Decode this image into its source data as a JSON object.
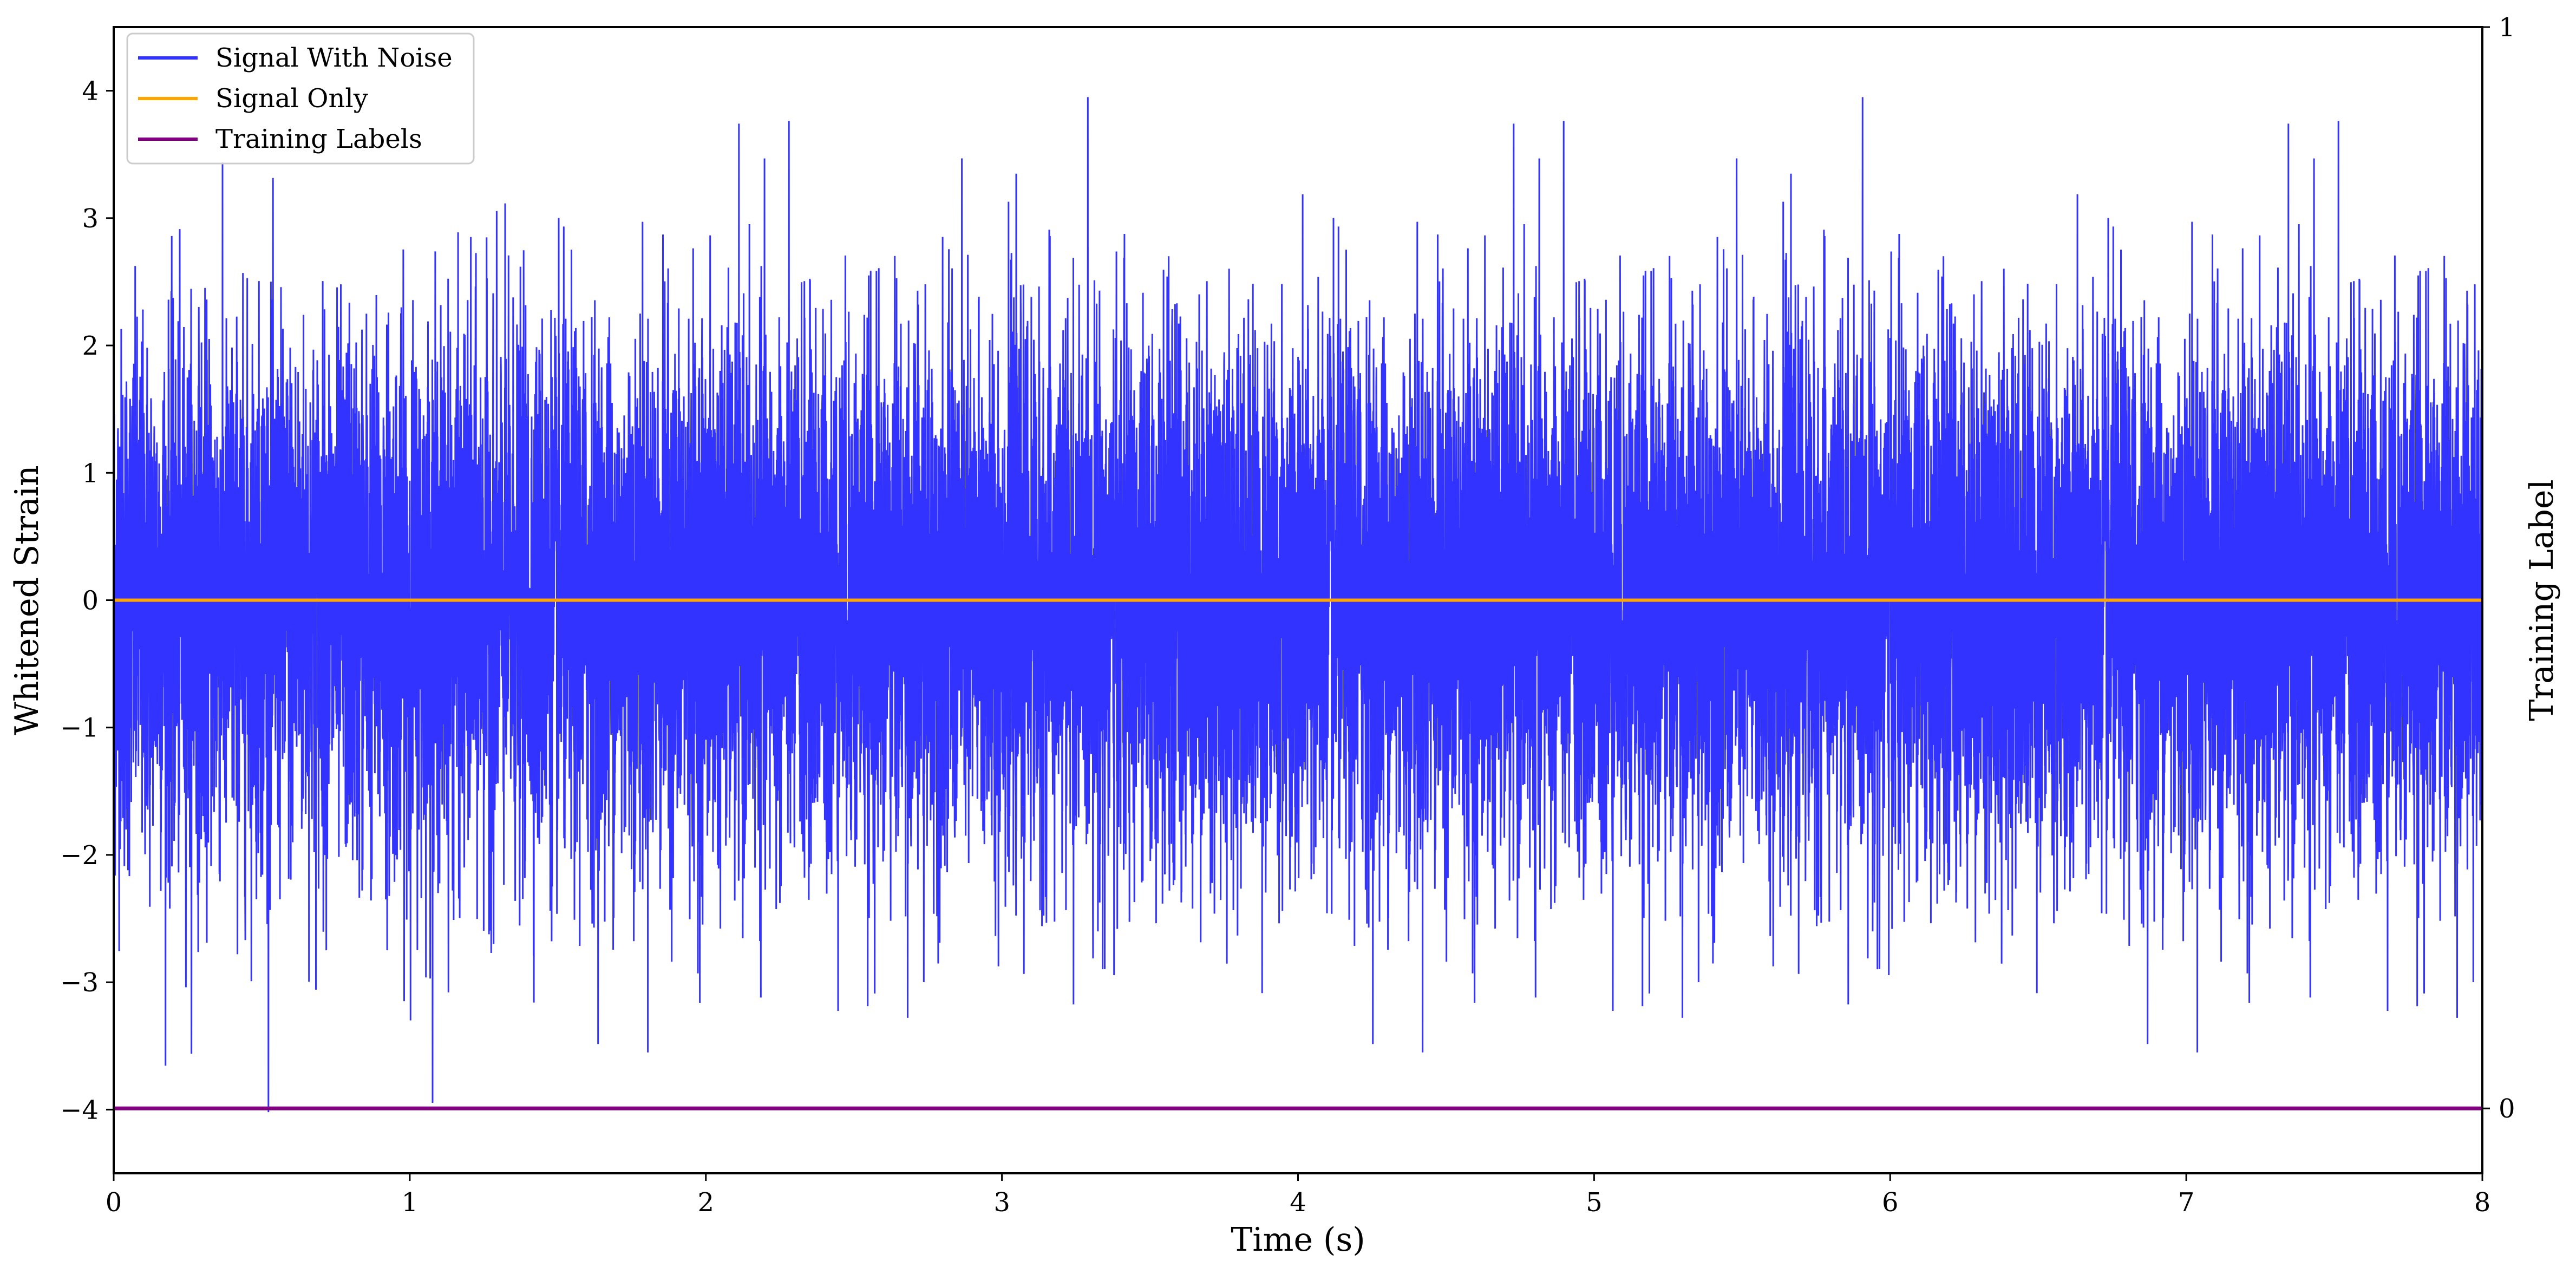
{
  "chart_data": {
    "type": "line",
    "title": "",
    "xlabel": "Time (s)",
    "ylabel": "Whitened Strain",
    "y2label": "Training Label",
    "xlim": [
      0,
      8
    ],
    "ylim": [
      -4.5,
      4.5
    ],
    "y2lim": [
      -0.06,
      1
    ],
    "xticks": [
      "0",
      "1",
      "2",
      "3",
      "4",
      "5",
      "6",
      "7",
      "8"
    ],
    "yticks": [
      "4",
      "3",
      "2",
      "1",
      "0",
      "−1",
      "−2",
      "−3",
      "−4"
    ],
    "y2ticks": [
      "1",
      "0"
    ],
    "grid": false,
    "legend_position": "top-left",
    "series": [
      {
        "name": "Signal With Noise",
        "color": "#3333ff",
        "style": "dense noise, approximately Gaussian around 0, peaks near ±4"
      },
      {
        "name": "Signal Only",
        "color": "#ffa500",
        "x": [
          0,
          8
        ],
        "y": [
          0,
          0
        ]
      },
      {
        "name": "Training Labels",
        "color": "#800080",
        "axis": "right",
        "x": [
          0,
          8
        ],
        "y": [
          0,
          0
        ]
      }
    ]
  }
}
